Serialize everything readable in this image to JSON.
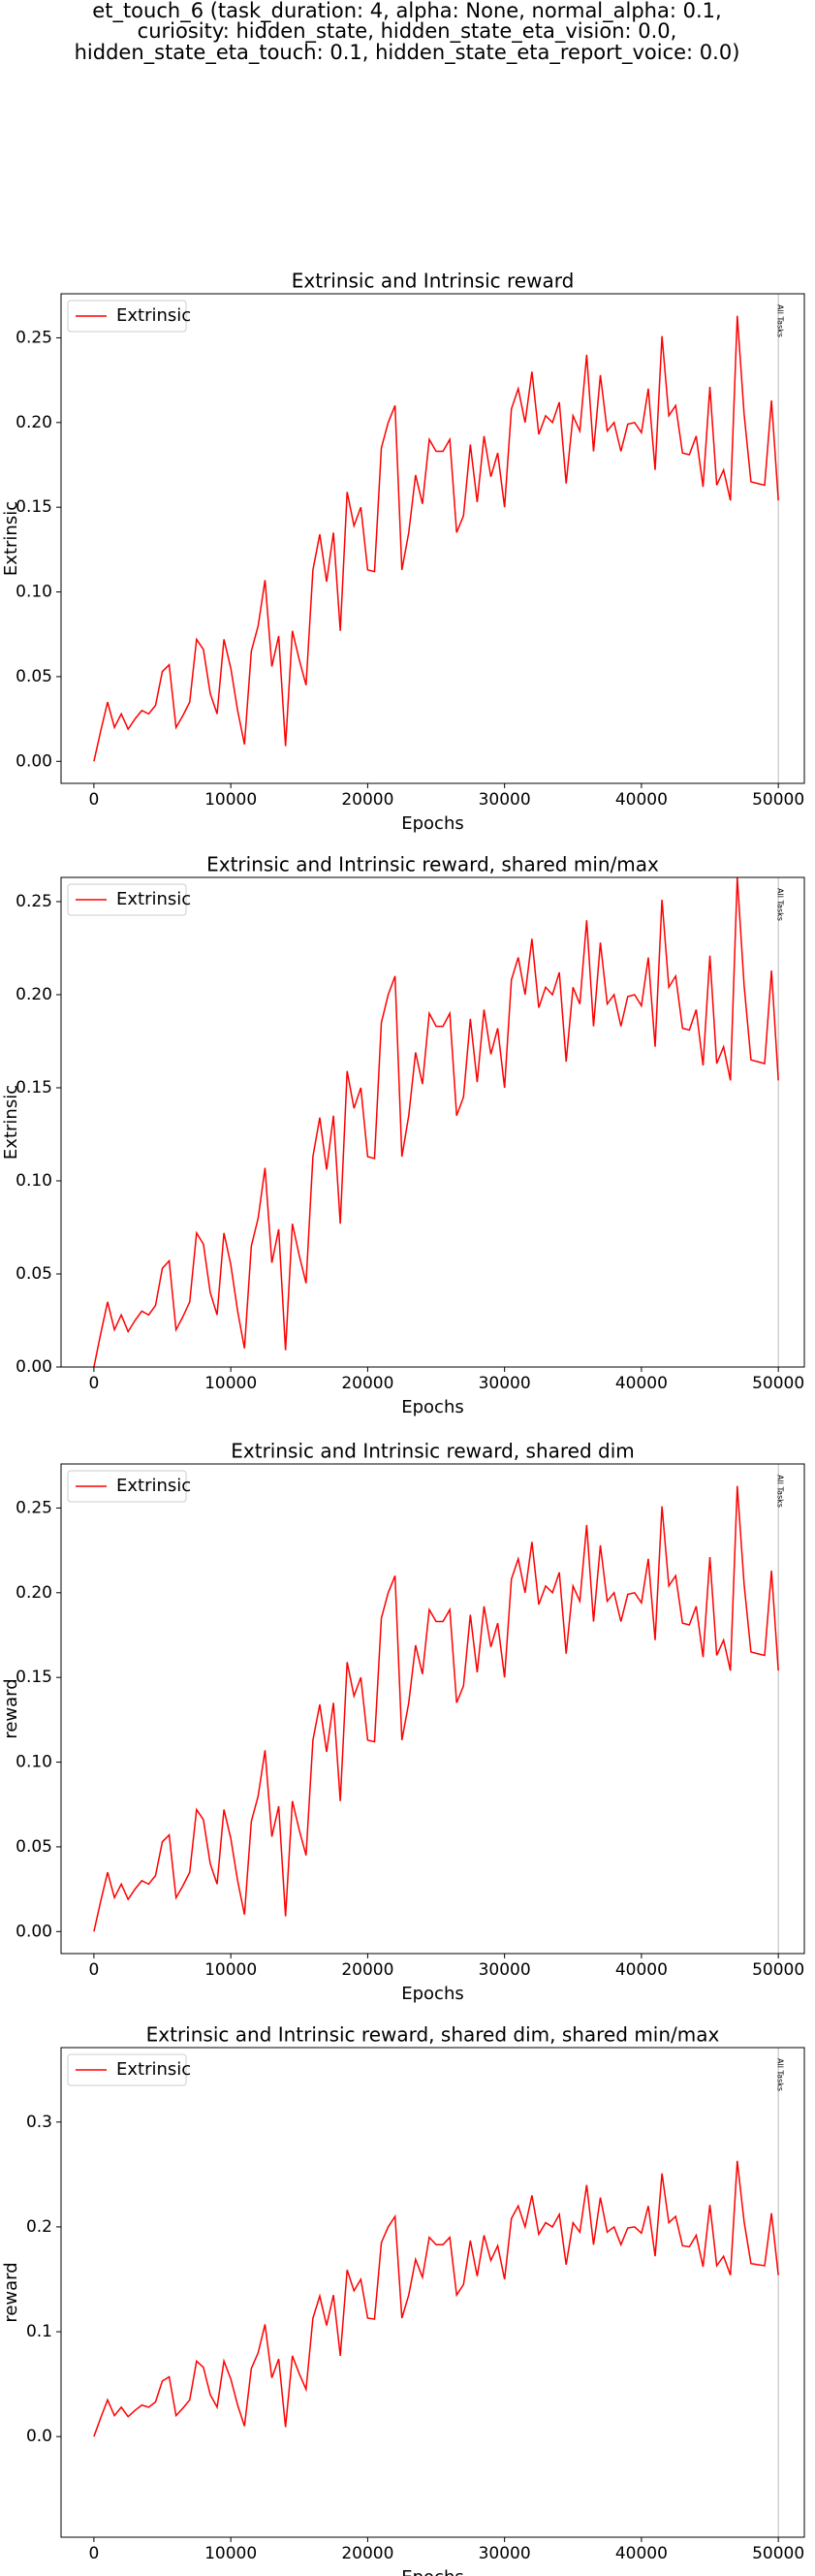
{
  "suptitle": [
    "et_touch_6 (task_duration: 4, alpha: None, normal_alpha: 0.1,",
    "curiosity: hidden_state, hidden_state_eta_vision: 0.0,",
    "hidden_state_eta_touch: 0.1, hidden_state_eta_report_voice: 0.0)"
  ],
  "chart_data": [
    {
      "type": "line",
      "title": "Extrinsic and Intrinsic reward",
      "xlabel": "Epochs",
      "ylabel": "Extrinsic",
      "x": [
        0,
        500,
        1000,
        1500,
        2000,
        2500,
        3000,
        3500,
        4000,
        4500,
        5000,
        5500,
        6000,
        6500,
        7000,
        7500,
        8000,
        8500,
        9000,
        9500,
        10000,
        10500,
        11000,
        11500,
        12000,
        12500,
        13000,
        13500,
        14000,
        14500,
        15000,
        15500,
        16000,
        16500,
        17000,
        17500,
        18000,
        18500,
        19000,
        19500,
        20000,
        20500,
        21000,
        21500,
        22000,
        22500,
        23000,
        23500,
        24000,
        24500,
        25000,
        25500,
        26000,
        26500,
        27000,
        27500,
        28000,
        28500,
        29000,
        29500,
        30000,
        30500,
        31000,
        31500,
        32000,
        32500,
        33000,
        33500,
        34000,
        34500,
        35000,
        35500,
        36000,
        36500,
        37000,
        37500,
        38000,
        38500,
        39000,
        39500,
        40000,
        40500,
        41000,
        41500,
        42000,
        42500,
        43000,
        43500,
        44000,
        44500,
        45000,
        45500,
        46000,
        46500,
        47000,
        47500,
        48000,
        48500,
        49000,
        49500,
        50000
      ],
      "series": [
        {
          "name": "Extrinsic",
          "color": "#ff0000",
          "values": [
            0.0,
            0.018,
            0.035,
            0.02,
            0.028,
            0.019,
            0.025,
            0.03,
            0.028,
            0.033,
            0.053,
            0.057,
            0.02,
            0.027,
            0.035,
            0.072,
            0.066,
            0.04,
            0.028,
            0.072,
            0.055,
            0.03,
            0.01,
            0.065,
            0.08,
            0.107,
            0.056,
            0.074,
            0.009,
            0.077,
            0.06,
            0.045,
            0.113,
            0.134,
            0.106,
            0.135,
            0.077,
            0.159,
            0.139,
            0.15,
            0.113,
            0.112,
            0.185,
            0.2,
            0.21,
            0.113,
            0.135,
            0.169,
            0.152,
            0.19,
            0.183,
            0.183,
            0.19,
            0.135,
            0.145,
            0.187,
            0.153,
            0.192,
            0.168,
            0.182,
            0.15,
            0.208,
            0.22,
            0.2,
            0.23,
            0.193,
            0.204,
            0.2,
            0.212,
            0.164,
            0.204,
            0.195,
            0.24,
            0.183,
            0.228,
            0.195,
            0.2,
            0.183,
            0.199,
            0.2,
            0.194,
            0.22,
            0.172,
            0.251,
            0.204,
            0.21,
            0.182,
            0.181,
            0.192,
            0.162,
            0.221,
            0.163,
            0.172,
            0.154,
            0.263,
            0.205,
            0.165,
            0.164,
            0.163,
            0.213,
            0.154
          ]
        }
      ],
      "xlim": [
        -2400,
        51900
      ],
      "xticks": [
        0,
        10000,
        20000,
        30000,
        40000,
        50000
      ],
      "ylim": [
        -0.013,
        0.276
      ],
      "yticks": [
        {
          "value": 0,
          "label": "0.00"
        },
        0.05,
        {
          "value": 0.1,
          "label": "0.10"
        },
        0.15,
        {
          "value": 0.2,
          "label": "0.20"
        },
        0.25
      ],
      "annotation": {
        "x": 50000,
        "text": "All Tasks"
      },
      "legend": "upper left",
      "grid": false
    },
    {
      "type": "line",
      "title": "Extrinsic and Intrinsic reward, shared min/max",
      "xlabel": "Epochs",
      "ylabel": "Extrinsic",
      "x": [
        0,
        500,
        1000,
        1500,
        2000,
        2500,
        3000,
        3500,
        4000,
        4500,
        5000,
        5500,
        6000,
        6500,
        7000,
        7500,
        8000,
        8500,
        9000,
        9500,
        10000,
        10500,
        11000,
        11500,
        12000,
        12500,
        13000,
        13500,
        14000,
        14500,
        15000,
        15500,
        16000,
        16500,
        17000,
        17500,
        18000,
        18500,
        19000,
        19500,
        20000,
        20500,
        21000,
        21500,
        22000,
        22500,
        23000,
        23500,
        24000,
        24500,
        25000,
        25500,
        26000,
        26500,
        27000,
        27500,
        28000,
        28500,
        29000,
        29500,
        30000,
        30500,
        31000,
        31500,
        32000,
        32500,
        33000,
        33500,
        34000,
        34500,
        35000,
        35500,
        36000,
        36500,
        37000,
        37500,
        38000,
        38500,
        39000,
        39500,
        40000,
        40500,
        41000,
        41500,
        42000,
        42500,
        43000,
        43500,
        44000,
        44500,
        45000,
        45500,
        46000,
        46500,
        47000,
        47500,
        48000,
        48500,
        49000,
        49500,
        50000
      ],
      "series": [
        {
          "name": "Extrinsic",
          "color": "#ff0000",
          "values": [
            0.0,
            0.018,
            0.035,
            0.02,
            0.028,
            0.019,
            0.025,
            0.03,
            0.028,
            0.033,
            0.053,
            0.057,
            0.02,
            0.027,
            0.035,
            0.072,
            0.066,
            0.04,
            0.028,
            0.072,
            0.055,
            0.03,
            0.01,
            0.065,
            0.08,
            0.107,
            0.056,
            0.074,
            0.009,
            0.077,
            0.06,
            0.045,
            0.113,
            0.134,
            0.106,
            0.135,
            0.077,
            0.159,
            0.139,
            0.15,
            0.113,
            0.112,
            0.185,
            0.2,
            0.21,
            0.113,
            0.135,
            0.169,
            0.152,
            0.19,
            0.183,
            0.183,
            0.19,
            0.135,
            0.145,
            0.187,
            0.153,
            0.192,
            0.168,
            0.182,
            0.15,
            0.208,
            0.22,
            0.2,
            0.23,
            0.193,
            0.204,
            0.2,
            0.212,
            0.164,
            0.204,
            0.195,
            0.24,
            0.183,
            0.228,
            0.195,
            0.2,
            0.183,
            0.199,
            0.2,
            0.194,
            0.22,
            0.172,
            0.251,
            0.204,
            0.21,
            0.182,
            0.181,
            0.192,
            0.162,
            0.221,
            0.163,
            0.172,
            0.154,
            0.263,
            0.205,
            0.165,
            0.164,
            0.163,
            0.213,
            0.154
          ]
        }
      ],
      "xlim": [
        -2400,
        51900
      ],
      "xticks": [
        0,
        10000,
        20000,
        30000,
        40000,
        50000
      ],
      "ylim": [
        0,
        0.263
      ],
      "yticks": [
        {
          "value": 0,
          "label": "0.00"
        },
        0.05,
        {
          "value": 0.1,
          "label": "0.10"
        },
        0.15,
        {
          "value": 0.2,
          "label": "0.20"
        },
        0.25
      ],
      "annotation": {
        "x": 50000,
        "text": "All Tasks"
      },
      "legend": "upper left",
      "grid": false
    },
    {
      "type": "line",
      "title": "Extrinsic and Intrinsic reward, shared dim",
      "xlabel": "Epochs",
      "ylabel": "reward",
      "x": [
        0,
        500,
        1000,
        1500,
        2000,
        2500,
        3000,
        3500,
        4000,
        4500,
        5000,
        5500,
        6000,
        6500,
        7000,
        7500,
        8000,
        8500,
        9000,
        9500,
        10000,
        10500,
        11000,
        11500,
        12000,
        12500,
        13000,
        13500,
        14000,
        14500,
        15000,
        15500,
        16000,
        16500,
        17000,
        17500,
        18000,
        18500,
        19000,
        19500,
        20000,
        20500,
        21000,
        21500,
        22000,
        22500,
        23000,
        23500,
        24000,
        24500,
        25000,
        25500,
        26000,
        26500,
        27000,
        27500,
        28000,
        28500,
        29000,
        29500,
        30000,
        30500,
        31000,
        31500,
        32000,
        32500,
        33000,
        33500,
        34000,
        34500,
        35000,
        35500,
        36000,
        36500,
        37000,
        37500,
        38000,
        38500,
        39000,
        39500,
        40000,
        40500,
        41000,
        41500,
        42000,
        42500,
        43000,
        43500,
        44000,
        44500,
        45000,
        45500,
        46000,
        46500,
        47000,
        47500,
        48000,
        48500,
        49000,
        49500,
        50000
      ],
      "series": [
        {
          "name": "Extrinsic",
          "color": "#ff0000",
          "values": [
            0.0,
            0.018,
            0.035,
            0.02,
            0.028,
            0.019,
            0.025,
            0.03,
            0.028,
            0.033,
            0.053,
            0.057,
            0.02,
            0.027,
            0.035,
            0.072,
            0.066,
            0.04,
            0.028,
            0.072,
            0.055,
            0.03,
            0.01,
            0.065,
            0.08,
            0.107,
            0.056,
            0.074,
            0.009,
            0.077,
            0.06,
            0.045,
            0.113,
            0.134,
            0.106,
            0.135,
            0.077,
            0.159,
            0.139,
            0.15,
            0.113,
            0.112,
            0.185,
            0.2,
            0.21,
            0.113,
            0.135,
            0.169,
            0.152,
            0.19,
            0.183,
            0.183,
            0.19,
            0.135,
            0.145,
            0.187,
            0.153,
            0.192,
            0.168,
            0.182,
            0.15,
            0.208,
            0.22,
            0.2,
            0.23,
            0.193,
            0.204,
            0.2,
            0.212,
            0.164,
            0.204,
            0.195,
            0.24,
            0.183,
            0.228,
            0.195,
            0.2,
            0.183,
            0.199,
            0.2,
            0.194,
            0.22,
            0.172,
            0.251,
            0.204,
            0.21,
            0.182,
            0.181,
            0.192,
            0.162,
            0.221,
            0.163,
            0.172,
            0.154,
            0.263,
            0.205,
            0.165,
            0.164,
            0.163,
            0.213,
            0.154
          ]
        }
      ],
      "xlim": [
        -2400,
        51900
      ],
      "xticks": [
        0,
        10000,
        20000,
        30000,
        40000,
        50000
      ],
      "ylim": [
        -0.013,
        0.276
      ],
      "yticks": [
        {
          "value": 0,
          "label": "0.00"
        },
        0.05,
        {
          "value": 0.1,
          "label": "0.10"
        },
        0.15,
        {
          "value": 0.2,
          "label": "0.20"
        },
        0.25
      ],
      "annotation": {
        "x": 50000,
        "text": "All Tasks"
      },
      "legend": "upper left",
      "grid": false
    },
    {
      "type": "line",
      "title": "Extrinsic and Intrinsic reward, shared dim, shared min/max",
      "xlabel": "Epochs",
      "ylabel": "reward",
      "x": [
        0,
        500,
        1000,
        1500,
        2000,
        2500,
        3000,
        3500,
        4000,
        4500,
        5000,
        5500,
        6000,
        6500,
        7000,
        7500,
        8000,
        8500,
        9000,
        9500,
        10000,
        10500,
        11000,
        11500,
        12000,
        12500,
        13000,
        13500,
        14000,
        14500,
        15000,
        15500,
        16000,
        16500,
        17000,
        17500,
        18000,
        18500,
        19000,
        19500,
        20000,
        20500,
        21000,
        21500,
        22000,
        22500,
        23000,
        23500,
        24000,
        24500,
        25000,
        25500,
        26000,
        26500,
        27000,
        27500,
        28000,
        28500,
        29000,
        29500,
        30000,
        30500,
        31000,
        31500,
        32000,
        32500,
        33000,
        33500,
        34000,
        34500,
        35000,
        35500,
        36000,
        36500,
        37000,
        37500,
        38000,
        38500,
        39000,
        39500,
        40000,
        40500,
        41000,
        41500,
        42000,
        42500,
        43000,
        43500,
        44000,
        44500,
        45000,
        45500,
        46000,
        46500,
        47000,
        47500,
        48000,
        48500,
        49000,
        49500,
        50000
      ],
      "series": [
        {
          "name": "Extrinsic",
          "color": "#ff0000",
          "values": [
            0.0,
            0.018,
            0.035,
            0.02,
            0.028,
            0.019,
            0.025,
            0.03,
            0.028,
            0.033,
            0.053,
            0.057,
            0.02,
            0.027,
            0.035,
            0.072,
            0.066,
            0.04,
            0.028,
            0.072,
            0.055,
            0.03,
            0.01,
            0.065,
            0.08,
            0.107,
            0.056,
            0.074,
            0.009,
            0.077,
            0.06,
            0.045,
            0.113,
            0.134,
            0.106,
            0.135,
            0.077,
            0.159,
            0.139,
            0.15,
            0.113,
            0.112,
            0.185,
            0.2,
            0.21,
            0.113,
            0.135,
            0.169,
            0.152,
            0.19,
            0.183,
            0.183,
            0.19,
            0.135,
            0.145,
            0.187,
            0.153,
            0.192,
            0.168,
            0.182,
            0.15,
            0.208,
            0.22,
            0.2,
            0.23,
            0.193,
            0.204,
            0.2,
            0.212,
            0.164,
            0.204,
            0.195,
            0.24,
            0.183,
            0.228,
            0.195,
            0.2,
            0.183,
            0.199,
            0.2,
            0.194,
            0.22,
            0.172,
            0.251,
            0.204,
            0.21,
            0.182,
            0.181,
            0.192,
            0.162,
            0.221,
            0.163,
            0.172,
            0.154,
            0.263,
            0.205,
            0.165,
            0.164,
            0.163,
            0.213,
            0.154
          ]
        }
      ],
      "xlim": [
        -2400,
        51900
      ],
      "xticks": [
        0,
        10000,
        20000,
        30000,
        40000,
        50000
      ],
      "ylim": [
        -0.096,
        0.371
      ],
      "yticks": [
        {
          "value": 0,
          "label": "0.0"
        },
        0.1,
        0.2,
        0.3
      ],
      "annotation": {
        "x": 50000,
        "text": "All Tasks"
      },
      "legend": "upper left",
      "grid": false
    }
  ]
}
